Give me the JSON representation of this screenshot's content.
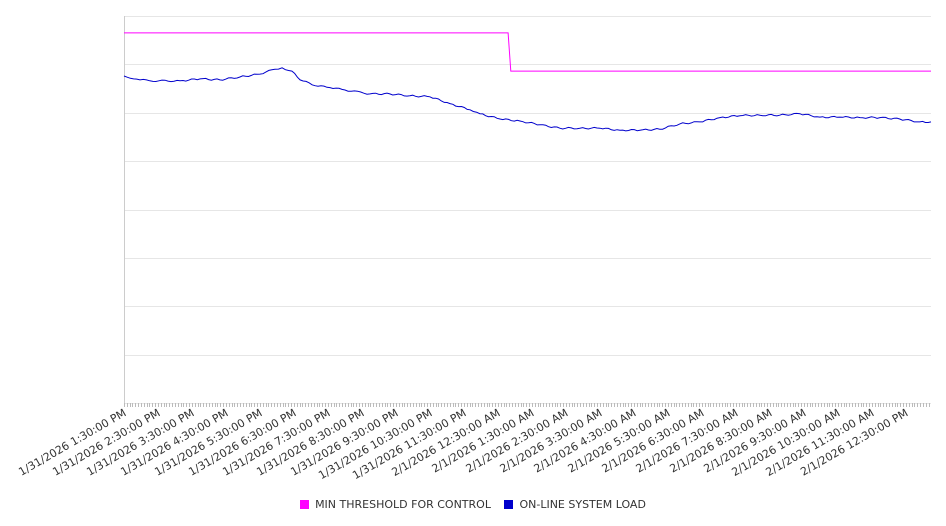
{
  "chart_data": {
    "type": "line",
    "title": "",
    "xlabel": "",
    "ylabel": "",
    "x_units": "hours since 1/31/2026 1:30:00 PM",
    "xlim": [
      0,
      23.74
    ],
    "ylim": [
      0,
      8
    ],
    "grid": true,
    "legend_position": "bottom",
    "tick_labels": [
      "1/31/2026 1:30:00 PM",
      "1/31/2026 2:30:00 PM",
      "1/31/2026 3:30:00 PM",
      "1/31/2026 4:30:00 PM",
      "1/31/2026 5:30:00 PM",
      "1/31/2026 6:30:00 PM",
      "1/31/2026 7:30:00 PM",
      "1/31/2026 8:30:00 PM",
      "1/31/2026 9:30:00 PM",
      "1/31/2026 10:30:00 PM",
      "1/31/2026 11:30:00 PM",
      "2/1/2026 12:30:00 AM",
      "2/1/2026 1:30:00 AM",
      "2/1/2026 2:30:00 AM",
      "2/1/2026 3:30:00 AM",
      "2/1/2026 4:30:00 AM",
      "2/1/2026 5:30:00 AM",
      "2/1/2026 6:30:00 AM",
      "2/1/2026 7:30:00 AM",
      "2/1/2026 8:30:00 AM",
      "2/1/2026 9:30:00 AM",
      "2/1/2026 10:30:00 AM",
      "2/1/2026 11:30:00 AM",
      "2/1/2026 12:30:00 PM"
    ],
    "series": [
      {
        "name": "MIN THRESHOLD FOR CONTROL",
        "color": "#ff00ff",
        "x": [
          0,
          11.3,
          11.38,
          23.74
        ],
        "y": [
          7.65,
          7.65,
          6.86,
          6.86
        ]
      },
      {
        "name": "ON-LINE SYSTEM LOAD",
        "color": "#0000cc",
        "x": [
          0,
          0.47,
          0.76,
          1.65,
          2.24,
          2.82,
          3.41,
          4.0,
          4.44,
          4.65,
          4.94,
          5.18,
          5.62,
          6.06,
          6.5,
          7.24,
          7.82,
          8.41,
          9.0,
          9.59,
          10.18,
          10.47,
          11.06,
          11.65,
          12.24,
          12.82,
          13.41,
          14.0,
          14.59,
          15.18,
          15.76,
          16.35,
          16.94,
          17.53,
          18.12,
          18.71,
          19.29,
          19.88,
          20.47,
          21.06,
          21.65,
          22.24,
          22.82,
          23.41,
          23.74
        ],
        "y": [
          6.76,
          6.68,
          6.66,
          6.66,
          6.7,
          6.68,
          6.74,
          6.8,
          6.9,
          6.93,
          6.86,
          6.68,
          6.56,
          6.52,
          6.47,
          6.39,
          6.39,
          6.35,
          6.33,
          6.19,
          6.06,
          5.98,
          5.87,
          5.83,
          5.75,
          5.68,
          5.68,
          5.68,
          5.64,
          5.64,
          5.66,
          5.77,
          5.81,
          5.9,
          5.94,
          5.95,
          5.95,
          5.98,
          5.91,
          5.91,
          5.9,
          5.9,
          5.87,
          5.81,
          5.81
        ]
      }
    ]
  }
}
